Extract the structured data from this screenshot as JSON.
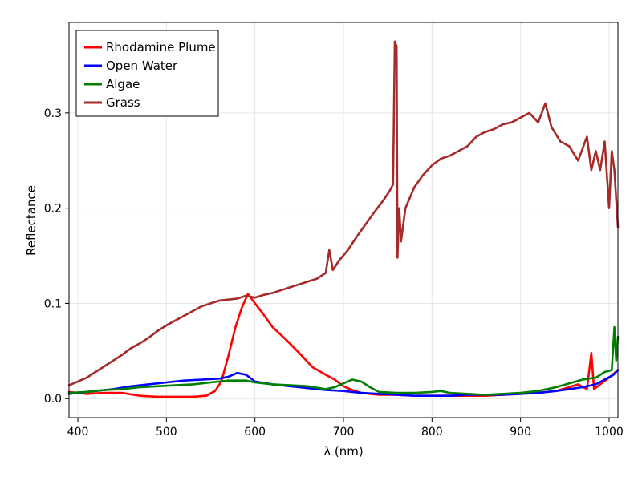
{
  "chart_data": {
    "type": "line",
    "title": "",
    "xlabel": "λ (nm)",
    "ylabel": "Reflectance",
    "xlim": [
      390,
      1010
    ],
    "ylim": [
      -0.02,
      0.395
    ],
    "xticks": [
      400,
      500,
      600,
      700,
      800,
      900,
      1000
    ],
    "yticks": [
      0.0,
      0.1,
      0.2,
      0.3
    ],
    "ytick_labels": [
      "0.0",
      "0.1",
      "0.2",
      "0.3"
    ],
    "grid": true,
    "legend_position": "top-left",
    "series": [
      {
        "name": "Rhodamine Plume",
        "color": "#ff0000",
        "points": [
          [
            390,
            0.007
          ],
          [
            410,
            0.005
          ],
          [
            430,
            0.006
          ],
          [
            450,
            0.006
          ],
          [
            470,
            0.003
          ],
          [
            490,
            0.002
          ],
          [
            510,
            0.002
          ],
          [
            530,
            0.002
          ],
          [
            545,
            0.003
          ],
          [
            555,
            0.008
          ],
          [
            562,
            0.018
          ],
          [
            570,
            0.045
          ],
          [
            578,
            0.075
          ],
          [
            585,
            0.095
          ],
          [
            592,
            0.11
          ],
          [
            600,
            0.1
          ],
          [
            610,
            0.088
          ],
          [
            620,
            0.075
          ],
          [
            635,
            0.062
          ],
          [
            650,
            0.048
          ],
          [
            665,
            0.033
          ],
          [
            680,
            0.025
          ],
          [
            690,
            0.02
          ],
          [
            700,
            0.013
          ],
          [
            710,
            0.009
          ],
          [
            720,
            0.006
          ],
          [
            740,
            0.004
          ],
          [
            760,
            0.004
          ],
          [
            780,
            0.003
          ],
          [
            800,
            0.003
          ],
          [
            820,
            0.003
          ],
          [
            840,
            0.003
          ],
          [
            860,
            0.003
          ],
          [
            880,
            0.004
          ],
          [
            900,
            0.005
          ],
          [
            920,
            0.006
          ],
          [
            940,
            0.008
          ],
          [
            955,
            0.012
          ],
          [
            965,
            0.015
          ],
          [
            975,
            0.01
          ],
          [
            980,
            0.048
          ],
          [
            983,
            0.01
          ],
          [
            990,
            0.015
          ],
          [
            1000,
            0.022
          ],
          [
            1010,
            0.03
          ]
        ]
      },
      {
        "name": "Open Water",
        "color": "#0000ff",
        "points": [
          [
            390,
            0.005
          ],
          [
            400,
            0.006
          ],
          [
            420,
            0.008
          ],
          [
            440,
            0.01
          ],
          [
            460,
            0.013
          ],
          [
            480,
            0.015
          ],
          [
            500,
            0.017
          ],
          [
            520,
            0.019
          ],
          [
            540,
            0.02
          ],
          [
            560,
            0.021
          ],
          [
            570,
            0.023
          ],
          [
            580,
            0.027
          ],
          [
            590,
            0.025
          ],
          [
            600,
            0.018
          ],
          [
            620,
            0.015
          ],
          [
            640,
            0.013
          ],
          [
            660,
            0.011
          ],
          [
            680,
            0.009
          ],
          [
            700,
            0.008
          ],
          [
            720,
            0.006
          ],
          [
            740,
            0.005
          ],
          [
            760,
            0.004
          ],
          [
            780,
            0.003
          ],
          [
            800,
            0.003
          ],
          [
            820,
            0.003
          ],
          [
            840,
            0.004
          ],
          [
            860,
            0.004
          ],
          [
            880,
            0.004
          ],
          [
            900,
            0.005
          ],
          [
            920,
            0.006
          ],
          [
            940,
            0.008
          ],
          [
            955,
            0.01
          ],
          [
            970,
            0.012
          ],
          [
            985,
            0.015
          ],
          [
            995,
            0.02
          ],
          [
            1005,
            0.025
          ],
          [
            1010,
            0.03
          ]
        ]
      },
      {
        "name": "Algae",
        "color": "#008000",
        "points": [
          [
            390,
            0.006
          ],
          [
            410,
            0.007
          ],
          [
            430,
            0.009
          ],
          [
            450,
            0.01
          ],
          [
            470,
            0.012
          ],
          [
            490,
            0.013
          ],
          [
            510,
            0.014
          ],
          [
            530,
            0.015
          ],
          [
            550,
            0.017
          ],
          [
            570,
            0.019
          ],
          [
            590,
            0.019
          ],
          [
            600,
            0.017
          ],
          [
            620,
            0.015
          ],
          [
            640,
            0.014
          ],
          [
            660,
            0.013
          ],
          [
            680,
            0.01
          ],
          [
            690,
            0.012
          ],
          [
            700,
            0.016
          ],
          [
            710,
            0.02
          ],
          [
            720,
            0.018
          ],
          [
            730,
            0.012
          ],
          [
            740,
            0.007
          ],
          [
            760,
            0.006
          ],
          [
            780,
            0.006
          ],
          [
            800,
            0.007
          ],
          [
            810,
            0.008
          ],
          [
            820,
            0.006
          ],
          [
            840,
            0.005
          ],
          [
            860,
            0.004
          ],
          [
            880,
            0.005
          ],
          [
            900,
            0.006
          ],
          [
            920,
            0.008
          ],
          [
            940,
            0.012
          ],
          [
            955,
            0.016
          ],
          [
            970,
            0.02
          ],
          [
            985,
            0.022
          ],
          [
            995,
            0.028
          ],
          [
            1003,
            0.03
          ],
          [
            1006,
            0.075
          ],
          [
            1008,
            0.04
          ],
          [
            1010,
            0.065
          ]
        ]
      },
      {
        "name": "Grass",
        "color": "#a52a2a",
        "points": [
          [
            390,
            0.014
          ],
          [
            400,
            0.018
          ],
          [
            410,
            0.022
          ],
          [
            420,
            0.028
          ],
          [
            430,
            0.034
          ],
          [
            440,
            0.04
          ],
          [
            450,
            0.046
          ],
          [
            460,
            0.053
          ],
          [
            470,
            0.058
          ],
          [
            480,
            0.064
          ],
          [
            490,
            0.071
          ],
          [
            500,
            0.077
          ],
          [
            510,
            0.082
          ],
          [
            520,
            0.087
          ],
          [
            530,
            0.092
          ],
          [
            540,
            0.097
          ],
          [
            550,
            0.1
          ],
          [
            560,
            0.103
          ],
          [
            570,
            0.104
          ],
          [
            580,
            0.105
          ],
          [
            590,
            0.108
          ],
          [
            600,
            0.106
          ],
          [
            610,
            0.109
          ],
          [
            620,
            0.111
          ],
          [
            630,
            0.114
          ],
          [
            640,
            0.117
          ],
          [
            650,
            0.12
          ],
          [
            660,
            0.123
          ],
          [
            670,
            0.126
          ],
          [
            680,
            0.132
          ],
          [
            684,
            0.156
          ],
          [
            688,
            0.135
          ],
          [
            695,
            0.145
          ],
          [
            705,
            0.156
          ],
          [
            715,
            0.17
          ],
          [
            725,
            0.183
          ],
          [
            735,
            0.196
          ],
          [
            745,
            0.208
          ],
          [
            752,
            0.218
          ],
          [
            756,
            0.225
          ],
          [
            758,
            0.375
          ],
          [
            760,
            0.37
          ],
          [
            761,
            0.148
          ],
          [
            763,
            0.2
          ],
          [
            765,
            0.165
          ],
          [
            770,
            0.2
          ],
          [
            780,
            0.222
          ],
          [
            790,
            0.235
          ],
          [
            800,
            0.245
          ],
          [
            810,
            0.252
          ],
          [
            820,
            0.255
          ],
          [
            830,
            0.26
          ],
          [
            840,
            0.265
          ],
          [
            850,
            0.275
          ],
          [
            860,
            0.28
          ],
          [
            870,
            0.283
          ],
          [
            880,
            0.288
          ],
          [
            890,
            0.29
          ],
          [
            900,
            0.295
          ],
          [
            910,
            0.3
          ],
          [
            920,
            0.29
          ],
          [
            928,
            0.31
          ],
          [
            935,
            0.285
          ],
          [
            945,
            0.27
          ],
          [
            955,
            0.265
          ],
          [
            965,
            0.25
          ],
          [
            975,
            0.275
          ],
          [
            980,
            0.24
          ],
          [
            985,
            0.26
          ],
          [
            990,
            0.24
          ],
          [
            995,
            0.27
          ],
          [
            1000,
            0.2
          ],
          [
            1003,
            0.26
          ],
          [
            1006,
            0.24
          ],
          [
            1010,
            0.18
          ]
        ]
      }
    ]
  }
}
